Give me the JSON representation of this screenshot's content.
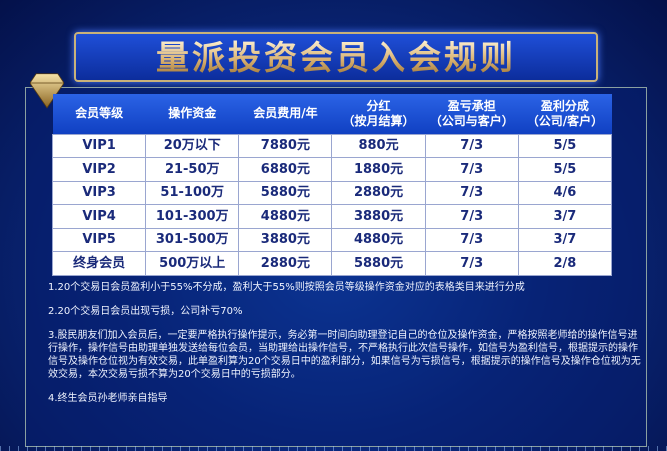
{
  "title": "量派投资会员入会规则",
  "table": {
    "headers": [
      [
        "会员等级",
        ""
      ],
      [
        "操作资金",
        ""
      ],
      [
        "会员费用/年",
        ""
      ],
      [
        "分红",
        "（按月结算）"
      ],
      [
        "盈亏承担",
        "（公司与客户）"
      ],
      [
        "盈利分成",
        "（公司/客户）"
      ]
    ],
    "rows": [
      [
        "VIP1",
        "20万以下",
        "7880元",
        "880元",
        "7/3",
        "5/5"
      ],
      [
        "VIP2",
        "21-50万",
        "6880元",
        "1880元",
        "7/3",
        "5/5"
      ],
      [
        "VIP3",
        "51-100万",
        "5880元",
        "2880元",
        "7/3",
        "4/6"
      ],
      [
        "VIP4",
        "101-300万",
        "4880元",
        "3880元",
        "7/3",
        "3/7"
      ],
      [
        "VIP5",
        "301-500万",
        "3880元",
        "4880元",
        "7/3",
        "3/7"
      ],
      [
        "终身会员",
        "500万以上",
        "2880元",
        "5880元",
        "7/3",
        "2/8"
      ]
    ]
  },
  "notes": [
    "1.20个交易日会员盈利小于55%不分成，盈利大于55%则按照会员等级操作资金对应的表格类目来进行分成",
    "2.20个交易日会员出现亏损，公司补亏70%",
    "3.股民朋友们加入会员后，一定要严格执行操作提示，务必第一时间向助理登记自己的仓位及操作资金，严格按照老师给的操作信号进行操作，操作信号由助理单独发送给每位会员，当助理给出操作信号，不严格执行此次信号操作，如信号为盈利信号，根据提示的操作信号及操作仓位视为有效交易，此单盈利算为20个交易日中的盈利部分，如果信号为亏损信号，根据提示的操作信号及操作仓位视为无效交易，本次交易亏损不算为20个交易日中的亏损部分。",
    "4.终生会员孙老师亲自指导"
  ]
}
